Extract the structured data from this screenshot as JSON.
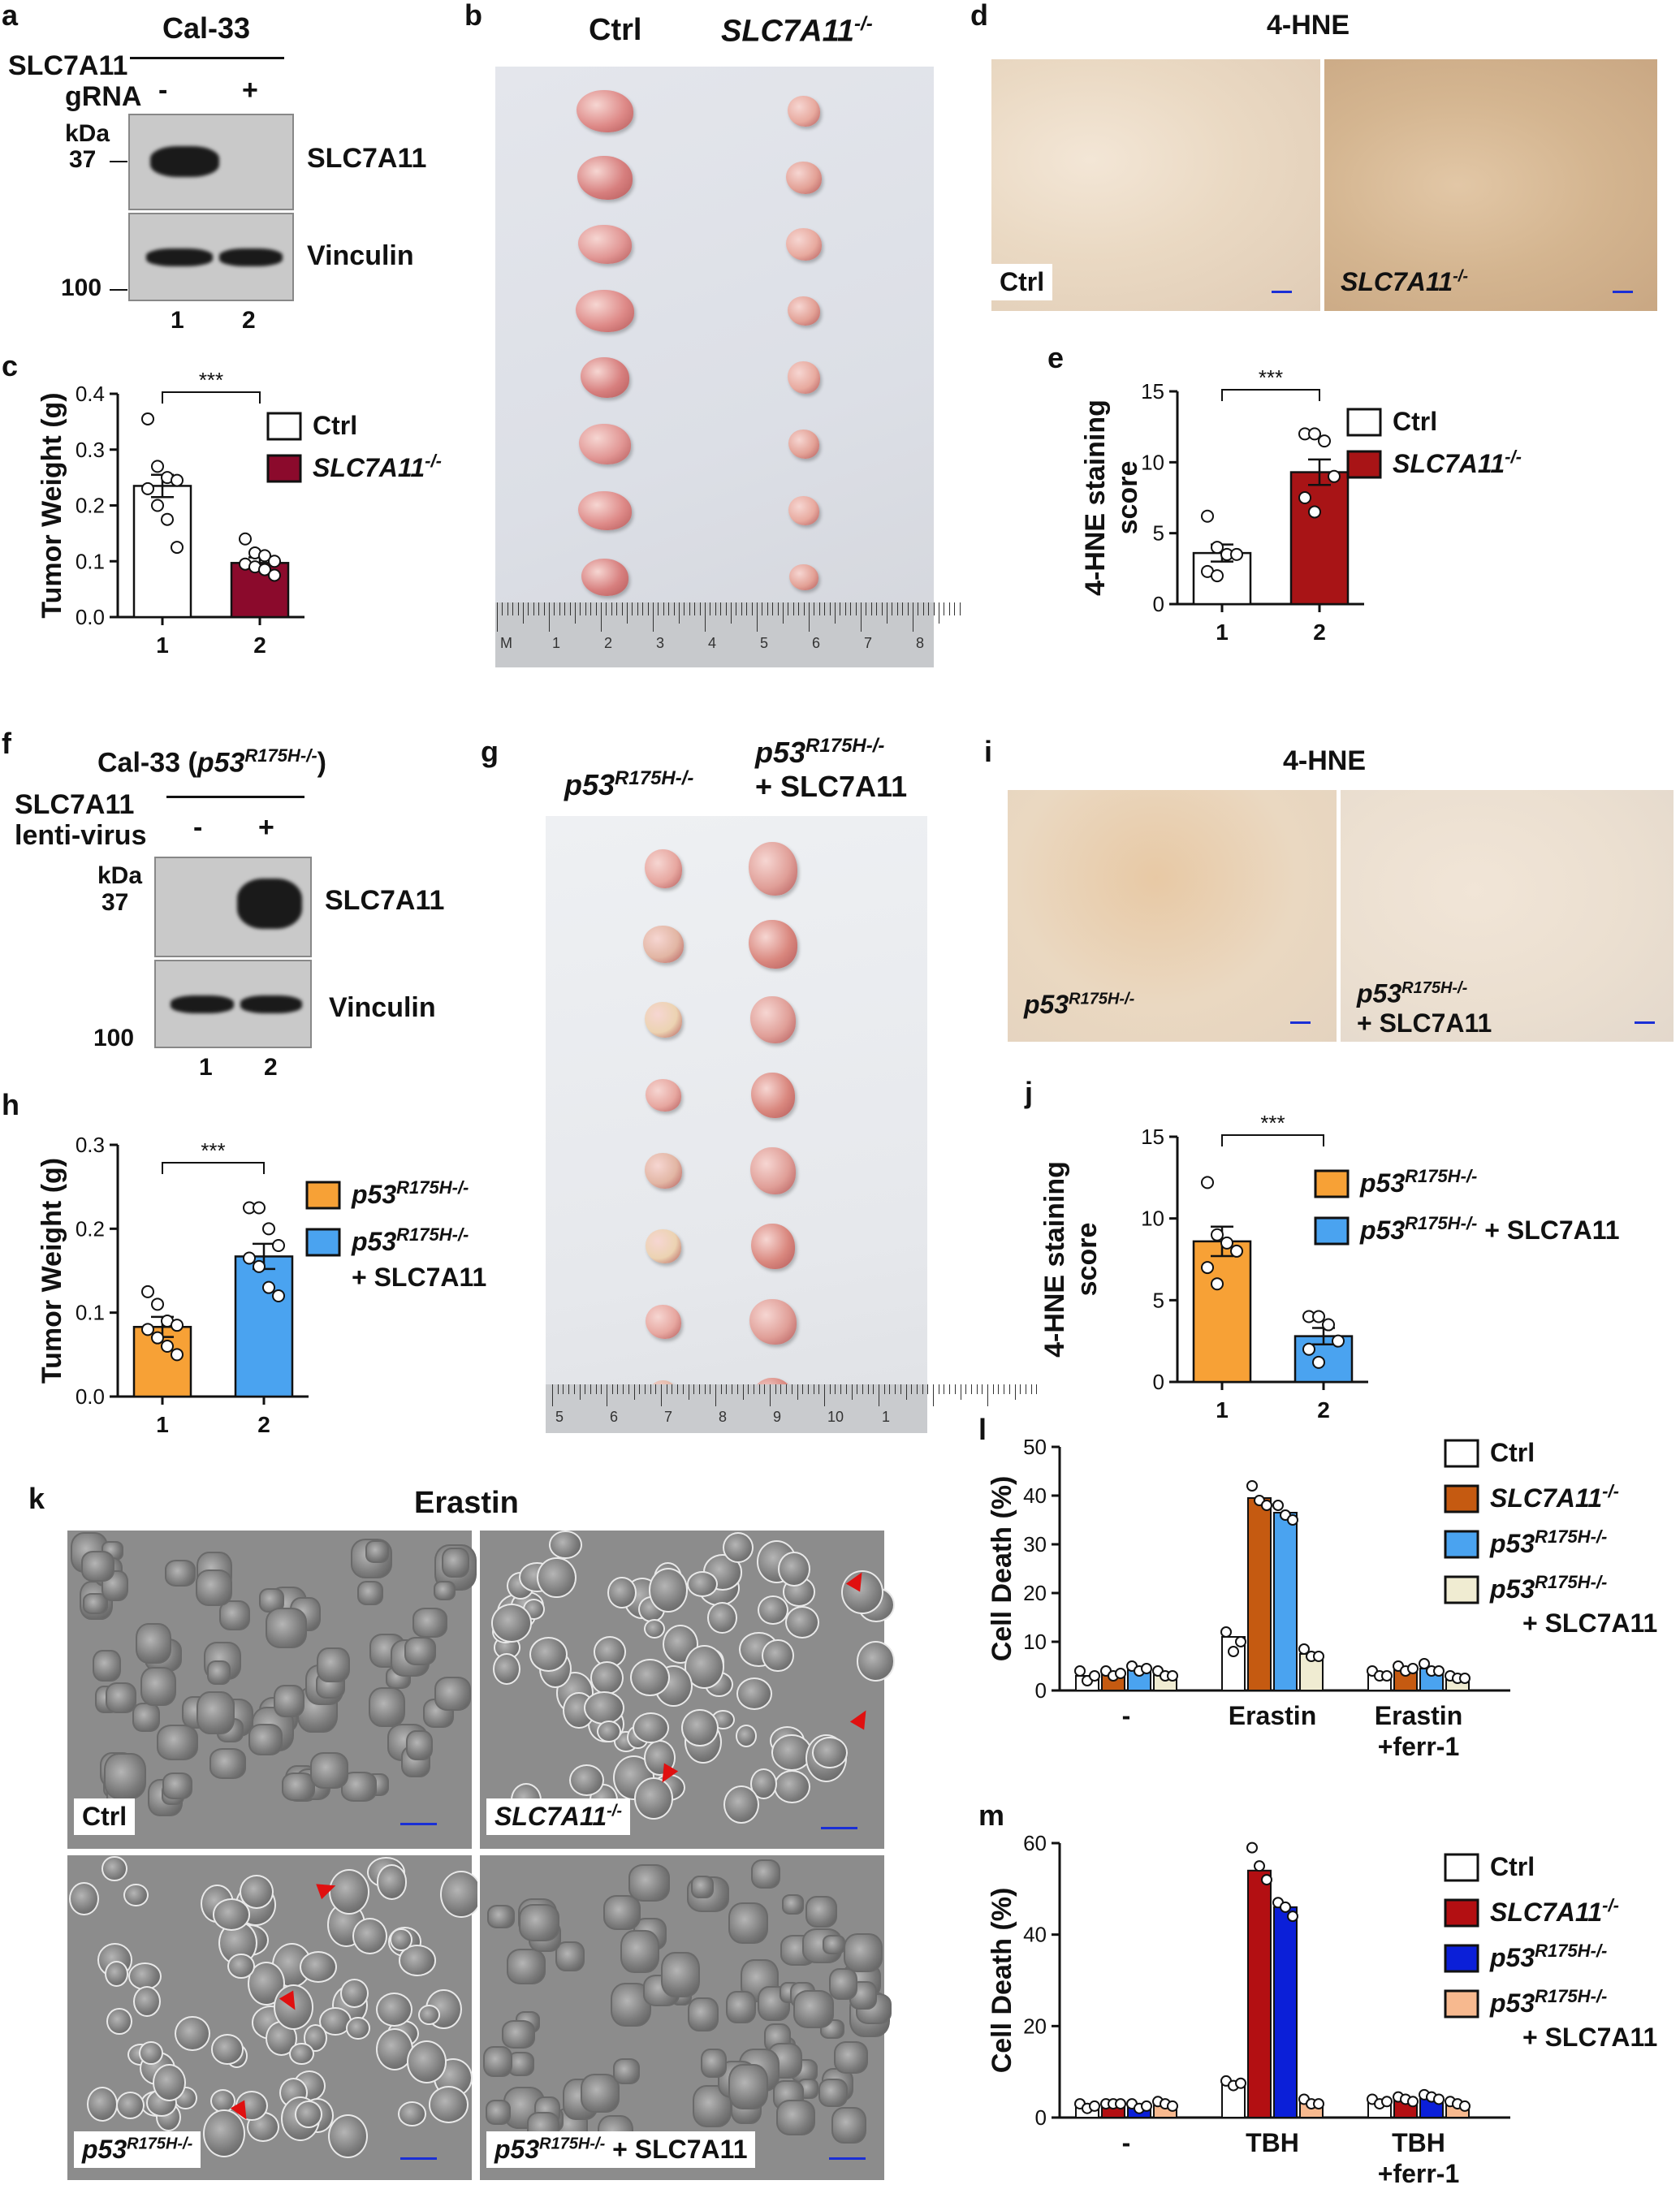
{
  "panels": {
    "a": {
      "letter": "a",
      "cell_line": "Cal-33",
      "row_label1": "SLC7A11",
      "row_label2": "gRNA",
      "lane_signs": [
        "-",
        "+"
      ],
      "kda": "kDa",
      "mw_37": "37",
      "mw_100": "100",
      "band1": "SLC7A11",
      "band2": "Vinculin",
      "lanes": [
        "1",
        "2"
      ]
    },
    "b": {
      "letter": "b",
      "col1": "Ctrl",
      "col2": "SLC7A11",
      "col2_sup": "-/-",
      "ruler_nums": [
        "M",
        "1",
        "2",
        "3",
        "4",
        "5",
        "6",
        "7",
        "8"
      ]
    },
    "c": {
      "letter": "c"
    },
    "d": {
      "letter": "d",
      "title": "4-HNE",
      "img1_label": "Ctrl",
      "img2_label": "SLC7A11",
      "img2_sup": "-/-"
    },
    "e": {
      "letter": "e"
    },
    "f": {
      "letter": "f",
      "cell_line": "Cal-33 (",
      "cell_line_gene": "p53",
      "cell_line_sup": "R175H-/-",
      "cell_line_end": ")",
      "row_label1": "SLC7A11",
      "row_label2": "lenti-virus",
      "lane_signs": [
        "-",
        "+"
      ],
      "kda": "kDa",
      "mw_37": "37",
      "mw_100": "100",
      "band1": "SLC7A11",
      "band2": "Vinculin",
      "lanes": [
        "1",
        "2"
      ]
    },
    "g": {
      "letter": "g",
      "col1_gene": "p53",
      "col1_sup": "R175H-/-",
      "col2_gene": "p53",
      "col2_sup": "R175H-/-",
      "col2_extra": "+ SLC7A11",
      "ruler_nums": [
        "5",
        "6",
        "7",
        "8",
        "9",
        "10",
        "1"
      ]
    },
    "h": {
      "letter": "h"
    },
    "i": {
      "letter": "i",
      "title": "4-HNE",
      "img1_gene": "p53",
      "img1_sup": "R175H-/-",
      "img2_gene": "p53",
      "img2_sup": "R175H-/-",
      "img2_extra": "+ SLC7A11"
    },
    "j": {
      "letter": "j"
    },
    "k": {
      "letter": "k",
      "title": "Erastin",
      "labels": [
        "Ctrl",
        "SLC7A11",
        "p53",
        "p53"
      ],
      "sups": [
        "",
        "-/-",
        "R175H-/-",
        "R175H-/-"
      ],
      "extra4": " + SLC7A11"
    },
    "l": {
      "letter": "l"
    },
    "m": {
      "letter": "m"
    }
  },
  "chart_data": [
    {
      "id": "c",
      "type": "bar",
      "ylabel": "Tumor Weight (g)",
      "ylim": [
        0,
        0.4
      ],
      "yticks": [
        "0.0",
        "0.1",
        "0.2",
        "0.3",
        "0.4"
      ],
      "categories": [
        "1",
        "2"
      ],
      "significance": "***",
      "series": [
        {
          "name": "Ctrl",
          "color": "#ffffff",
          "value": 0.235,
          "err": 0.02,
          "points": [
            0.355,
            0.27,
            0.25,
            0.245,
            0.23,
            0.2,
            0.175,
            0.125
          ]
        },
        {
          "name": "SLC7A11-/-",
          "color": "#8b0a2c",
          "value": 0.097,
          "err": 0.01,
          "points": [
            0.14,
            0.115,
            0.11,
            0.1,
            0.095,
            0.09,
            0.085,
            0.075
          ]
        }
      ],
      "legend": [
        {
          "text": "Ctrl",
          "sup": ""
        },
        {
          "text": "SLC7A11",
          "sup": "-/-"
        }
      ]
    },
    {
      "id": "e",
      "type": "bar",
      "ylabel": "4-HNE staining score",
      "ylim": [
        0,
        15
      ],
      "yticks": [
        "0",
        "5",
        "10",
        "15"
      ],
      "categories": [
        "1",
        "2"
      ],
      "significance": "***",
      "series": [
        {
          "name": "Ctrl",
          "color": "#ffffff",
          "value": 3.6,
          "err": 0.6,
          "points": [
            6.2,
            4.0,
            3.5,
            3.5,
            2.3,
            2.0
          ]
        },
        {
          "name": "SLC7A11-/-",
          "color": "#a81416",
          "value": 9.3,
          "err": 0.9,
          "points": [
            12.0,
            12.0,
            11.5,
            9.0,
            7.5,
            6.5
          ]
        }
      ],
      "legend": [
        {
          "text": "Ctrl",
          "sup": ""
        },
        {
          "text": "SLC7A11",
          "sup": "-/-"
        }
      ]
    },
    {
      "id": "h",
      "type": "bar",
      "ylabel": "Tumor Weight (g)",
      "ylim": [
        0,
        0.3
      ],
      "yticks": [
        "0.0",
        "0.1",
        "0.2",
        "0.3"
      ],
      "categories": [
        "1",
        "2"
      ],
      "significance": "***",
      "series": [
        {
          "name": "p53R175H-/-",
          "color": "#f7a136",
          "value": 0.083,
          "err": 0.012,
          "points": [
            0.125,
            0.11,
            0.09,
            0.085,
            0.08,
            0.07,
            0.06,
            0.05
          ]
        },
        {
          "name": "p53R175H-/- + SLC7A11",
          "color": "#4aa3f0",
          "value": 0.167,
          "err": 0.015,
          "points": [
            0.225,
            0.225,
            0.2,
            0.18,
            0.165,
            0.155,
            0.13,
            0.12
          ]
        }
      ],
      "legend": [
        {
          "text": "p53",
          "sup": "R175H-/-",
          "extra": ""
        },
        {
          "text": "p53",
          "sup": "R175H-/-",
          "extra": "+ SLC7A11"
        }
      ]
    },
    {
      "id": "j",
      "type": "bar",
      "ylabel": "4-HNE staining score",
      "ylim": [
        0,
        15
      ],
      "yticks": [
        "0",
        "5",
        "10",
        "15"
      ],
      "categories": [
        "1",
        "2"
      ],
      "significance": "***",
      "series": [
        {
          "name": "p53R175H-/-",
          "color": "#f7a136",
          "value": 8.6,
          "err": 0.9,
          "points": [
            12.2,
            9.0,
            8.5,
            8.0,
            7.0,
            6.0
          ]
        },
        {
          "name": "p53R175H-/- + SLC7A11",
          "color": "#4aa3f0",
          "value": 2.8,
          "err": 0.5,
          "points": [
            4.0,
            4.0,
            3.5,
            2.5,
            2.0,
            1.2
          ]
        }
      ],
      "legend": [
        {
          "text": "p53",
          "sup": "R175H-/-",
          "extra": ""
        },
        {
          "text": "p53",
          "sup": "R175H-/-",
          "extra": " + SLC7A11"
        }
      ]
    },
    {
      "id": "l",
      "type": "bar",
      "ylabel": "Cell Death (%)",
      "ylim": [
        0,
        50
      ],
      "yticks": [
        "0",
        "10",
        "20",
        "30",
        "40",
        "50"
      ],
      "categories": [
        "-",
        "Erastin",
        "Erastin\n+ferr-1"
      ],
      "series": [
        {
          "name": "Ctrl",
          "color": "#ffffff",
          "values": [
            3.0,
            11.0,
            3.5
          ],
          "points": [
            [
              4,
              2,
              3
            ],
            [
              12,
              8,
              10
            ],
            [
              4,
              3,
              3
            ]
          ]
        },
        {
          "name": "SLC7A11-/-",
          "color": "#c55a11",
          "values": [
            3.5,
            39.5,
            4.5
          ],
          "points": [
            [
              4,
              3,
              3.5
            ],
            [
              42,
              39,
              38
            ],
            [
              5,
              4,
              4.5
            ]
          ]
        },
        {
          "name": "p53R175H-/-",
          "color": "#4aa3f0",
          "values": [
            4.5,
            36.5,
            4.5
          ],
          "points": [
            [
              5,
              4,
              4.5
            ],
            [
              38,
              36,
              35
            ],
            [
              5.5,
              4,
              4
            ]
          ]
        },
        {
          "name": "p53R175H-/- + SLC7A11",
          "color": "#f0ecd2",
          "values": [
            3.5,
            7.5,
            2.5
          ],
          "points": [
            [
              4,
              3,
              3
            ],
            [
              8.5,
              7,
              7
            ],
            [
              3,
              2.5,
              2.5
            ]
          ]
        }
      ],
      "legend": [
        {
          "text": "Ctrl",
          "sup": ""
        },
        {
          "text": "SLC7A11",
          "sup": "-/-"
        },
        {
          "text": "p53",
          "sup": "R175H-/-"
        },
        {
          "text": "p53",
          "sup": "R175H-/-",
          "extra": "+ SLC7A11"
        }
      ]
    },
    {
      "id": "m",
      "type": "bar",
      "ylabel": "Cell Death (%)",
      "ylim": [
        0,
        60
      ],
      "yticks": [
        "0",
        "20",
        "40",
        "60"
      ],
      "categories": [
        "-",
        "TBH",
        "TBH\n+ferr-1"
      ],
      "series": [
        {
          "name": "Ctrl",
          "color": "#ffffff",
          "values": [
            2.5,
            7.5,
            3.5
          ],
          "points": [
            [
              3,
              2,
              2.5
            ],
            [
              8,
              7,
              7.5
            ],
            [
              4,
              3,
              3.5
            ]
          ]
        },
        {
          "name": "SLC7A11-/-",
          "color": "#b30f12",
          "values": [
            3.0,
            54.0,
            4.0
          ],
          "points": [
            [
              3,
              3,
              3
            ],
            [
              59,
              55,
              52
            ],
            [
              4.5,
              4,
              3.5
            ]
          ]
        },
        {
          "name": "p53R175H-/-",
          "color": "#0b1fd8",
          "values": [
            2.5,
            46.0,
            4.5
          ],
          "points": [
            [
              3,
              2,
              2.5
            ],
            [
              47,
              46,
              44
            ],
            [
              5,
              4.5,
              4
            ]
          ]
        },
        {
          "name": "p53R175H-/- + SLC7A11",
          "color": "#f7b98f",
          "values": [
            3.0,
            3.5,
            3.0
          ],
          "points": [
            [
              3.5,
              3,
              2.5
            ],
            [
              4,
              3,
              3
            ],
            [
              3.5,
              3,
              2.5
            ]
          ]
        }
      ],
      "legend": [
        {
          "text": "Ctrl",
          "sup": ""
        },
        {
          "text": "SLC7A11",
          "sup": "-/-"
        },
        {
          "text": "p53",
          "sup": "R175H-/-"
        },
        {
          "text": "p53",
          "sup": "R175H-/-",
          "extra": "+ SLC7A11"
        }
      ]
    }
  ]
}
